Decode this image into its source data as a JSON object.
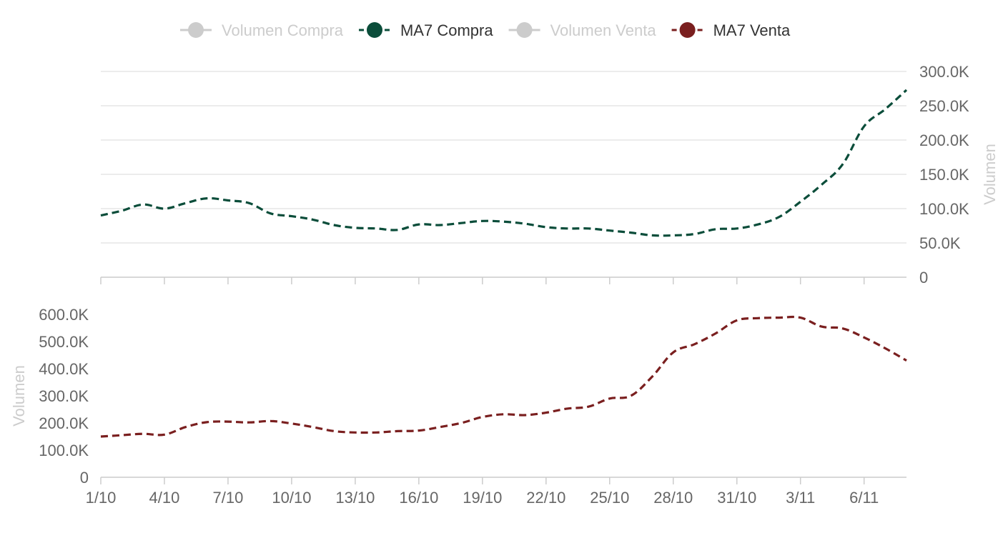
{
  "legend": {
    "items": [
      {
        "label": "Volumen Compra",
        "color": "#cccccc",
        "active": false
      },
      {
        "label": "MA7 Compra",
        "color": "#0b4d3a",
        "active": true
      },
      {
        "label": "Volumen Venta",
        "color": "#cccccc",
        "active": false
      },
      {
        "label": "MA7 Venta",
        "color": "#7a1f1f",
        "active": true
      }
    ]
  },
  "chart_data": [
    {
      "type": "line",
      "x": [
        "1/10",
        "2/10",
        "3/10",
        "4/10",
        "5/10",
        "6/10",
        "7/10",
        "8/10",
        "9/10",
        "10/10",
        "11/10",
        "12/10",
        "13/10",
        "14/10",
        "15/10",
        "16/10",
        "17/10",
        "18/10",
        "19/10",
        "20/10",
        "21/10",
        "22/10",
        "23/10",
        "24/10",
        "25/10",
        "26/10",
        "27/10",
        "28/10",
        "29/10",
        "30/10",
        "31/10",
        "1/11",
        "2/11",
        "3/11",
        "4/11",
        "5/11",
        "6/11",
        "7/11",
        "8/11"
      ],
      "x_tick_labels": [
        "1/10",
        "4/10",
        "7/10",
        "10/10",
        "13/10",
        "16/10",
        "19/10",
        "22/10",
        "25/10",
        "28/10",
        "31/10",
        "3/11",
        "6/11"
      ],
      "series": [
        {
          "name": "MA7 Compra",
          "color": "#0b4d3a",
          "dashed": true,
          "values": [
            90000,
            97000,
            106000,
            100000,
            108000,
            115000,
            112000,
            108000,
            93000,
            89000,
            84000,
            76000,
            72000,
            71000,
            69000,
            77000,
            76000,
            79000,
            82000,
            81000,
            78000,
            73000,
            71000,
            71000,
            68000,
            65000,
            61000,
            61000,
            63000,
            70000,
            71000,
            77000,
            88000,
            110000,
            135000,
            165000,
            220000,
            245000,
            273000
          ]
        }
      ],
      "ylabel": "Volumen",
      "yaxis_position": "right",
      "ylim": [
        0,
        300000
      ],
      "y_tick_labels": [
        "0",
        "50.0K",
        "100.0K",
        "150.0K",
        "200.0K",
        "250.0K",
        "300.0K"
      ],
      "grid": true
    },
    {
      "type": "line",
      "x": [
        "1/10",
        "2/10",
        "3/10",
        "4/10",
        "5/10",
        "6/10",
        "7/10",
        "8/10",
        "9/10",
        "10/10",
        "11/10",
        "12/10",
        "13/10",
        "14/10",
        "15/10",
        "16/10",
        "17/10",
        "18/10",
        "19/10",
        "20/10",
        "21/10",
        "22/10",
        "23/10",
        "24/10",
        "25/10",
        "26/10",
        "27/10",
        "28/10",
        "29/10",
        "30/10",
        "31/10",
        "1/11",
        "2/11",
        "3/11",
        "4/11",
        "5/11",
        "6/11",
        "7/11",
        "8/11"
      ],
      "x_tick_labels": [
        "1/10",
        "4/10",
        "7/10",
        "10/10",
        "13/10",
        "16/10",
        "19/10",
        "22/10",
        "25/10",
        "28/10",
        "31/10",
        "3/11",
        "6/11"
      ],
      "series": [
        {
          "name": "MA7 Venta",
          "color": "#7a1f1f",
          "dashed": true,
          "values": [
            150000,
            155000,
            160000,
            157000,
            185000,
            203000,
            205000,
            202000,
            207000,
            198000,
            185000,
            170000,
            165000,
            165000,
            170000,
            172000,
            185000,
            200000,
            222000,
            232000,
            229000,
            238000,
            253000,
            260000,
            290000,
            300000,
            370000,
            460000,
            490000,
            530000,
            578000,
            586000,
            588000,
            588000,
            555000,
            548000,
            515000,
            475000,
            430000
          ]
        }
      ],
      "ylabel": "Volumen",
      "yaxis_position": "left",
      "ylim": [
        0,
        600000
      ],
      "y_tick_labels": [
        "0",
        "100.0K",
        "200.0K",
        "300.0K",
        "400.0K",
        "500.0K",
        "600.0K"
      ],
      "grid": false
    }
  ]
}
